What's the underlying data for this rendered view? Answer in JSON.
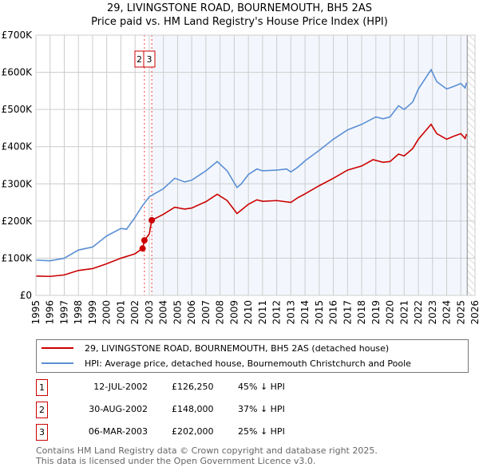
{
  "title_line1": "29, LIVINGSTONE ROAD, BOURNEMOUTH, BH5 2AS",
  "title_line2": "Price paid vs. HM Land Registry's House Price Index (HPI)",
  "legend": [
    {
      "label": "29, LIVINGSTONE ROAD, BOURNEMOUTH, BH5 2AS (detached house)",
      "color": "#cc0000"
    },
    {
      "label": "HPI: Average price, detached house, Bournemouth Christchurch and Poole",
      "color": "#5b8fd4"
    }
  ],
  "transactions": [
    {
      "num": "1",
      "date": "12-JUL-2002",
      "price": "£126,250",
      "hpi": "45% ↓ HPI"
    },
    {
      "num": "2",
      "date": "30-AUG-2002",
      "price": "£148,000",
      "hpi": "37% ↓ HPI"
    },
    {
      "num": "3",
      "date": "06-MAR-2003",
      "price": "£202,000",
      "hpi": "25% ↓ HPI"
    }
  ],
  "footer_line1": "Contains HM Land Registry data © Crown copyright and database right 2025.",
  "footer_line2": "This data is licensed under the Open Government Licence v3.0.",
  "chart_data": {
    "type": "line",
    "xlim": [
      1995,
      2026
    ],
    "ylim": [
      0,
      700000
    ],
    "xticks": [
      "1995",
      "1996",
      "1997",
      "1998",
      "1999",
      "2000",
      "2001",
      "2002",
      "2003",
      "2004",
      "2005",
      "2006",
      "2007",
      "2008",
      "2009",
      "2010",
      "2011",
      "2012",
      "2013",
      "2014",
      "2015",
      "2016",
      "2017",
      "2018",
      "2019",
      "2020",
      "2021",
      "2022",
      "2023",
      "2024",
      "2025",
      "2026"
    ],
    "yticks": [
      {
        "v": 0,
        "label": "£0"
      },
      {
        "v": 100000,
        "label": "£100K"
      },
      {
        "v": 200000,
        "label": "£200K"
      },
      {
        "v": 300000,
        "label": "£300K"
      },
      {
        "v": 400000,
        "label": "£400K"
      },
      {
        "v": 500000,
        "label": "£500K"
      },
      {
        "v": 600000,
        "label": "£600K"
      },
      {
        "v": 700000,
        "label": "£700K"
      }
    ],
    "shaded_from": 2003.18,
    "hatched_from": 2025.45,
    "series": [
      {
        "name": "HPI",
        "color": "#5b8fd4",
        "x": [
          1995,
          1996,
          1997,
          1998,
          1999,
          2000,
          2001,
          2001.4,
          2002,
          2002.5,
          2003,
          2004,
          2004.8,
          2005.5,
          2006,
          2007,
          2007.8,
          2008.5,
          2009.2,
          2009.5,
          2010,
          2010.6,
          2011,
          2012,
          2012.7,
          2013,
          2013.5,
          2014,
          2015,
          2016,
          2017,
          2018,
          2019,
          2019.5,
          2020,
          2020.6,
          2021,
          2021.6,
          2022,
          2022.9,
          2023.3,
          2024,
          2024.5,
          2025,
          2025.3,
          2025.4
        ],
        "y": [
          95000,
          93000,
          100000,
          122000,
          130000,
          160000,
          180000,
          178000,
          210000,
          240000,
          265000,
          287000,
          315000,
          305000,
          310000,
          335000,
          360000,
          335000,
          290000,
          300000,
          325000,
          340000,
          335000,
          337000,
          340000,
          332000,
          345000,
          362000,
          390000,
          420000,
          445000,
          460000,
          480000,
          475000,
          480000,
          510000,
          500000,
          520000,
          555000,
          607000,
          575000,
          555000,
          562000,
          570000,
          558000,
          572000
        ]
      },
      {
        "name": "Price paid",
        "color": "#cc0000",
        "x": [
          1995,
          1996,
          1997,
          1998,
          1999,
          2000,
          2001,
          2002,
          2002.53,
          2002.66,
          2003.0,
          2003.18,
          2004,
          2004.8,
          2005.5,
          2006,
          2007,
          2007.8,
          2008.5,
          2009.2,
          2010,
          2010.6,
          2011,
          2012,
          2013,
          2013.5,
          2014,
          2015,
          2016,
          2017,
          2018,
          2018.8,
          2019.5,
          2020,
          2020.6,
          2021,
          2021.6,
          2022,
          2022.9,
          2023.3,
          2024,
          2024.5,
          2025,
          2025.3,
          2025.4
        ],
        "y": [
          52000,
          51000,
          55000,
          67000,
          72000,
          85000,
          100000,
          112000,
          126250,
          148000,
          165000,
          202000,
          218000,
          237000,
          232000,
          235000,
          252000,
          272000,
          255000,
          220000,
          245000,
          257000,
          253000,
          255000,
          250000,
          263000,
          273000,
          295000,
          315000,
          337000,
          348000,
          365000,
          358000,
          360000,
          380000,
          375000,
          395000,
          420000,
          460000,
          435000,
          420000,
          428000,
          435000,
          422000,
          434000
        ]
      }
    ],
    "sales": [
      {
        "label": "1",
        "x": 2002.53,
        "y": 126250
      },
      {
        "label": "2",
        "x": 2002.66,
        "y": 148000
      },
      {
        "label": "3",
        "x": 2003.18,
        "y": 202000
      }
    ]
  }
}
